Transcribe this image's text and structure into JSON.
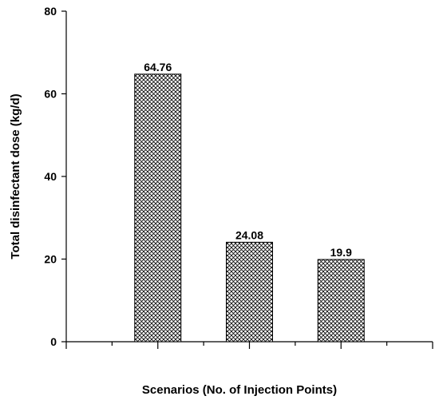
{
  "chart_data": {
    "type": "bar",
    "title": "",
    "xlabel": "Scenarios (No. of Injection Points)",
    "ylabel": "Total disinfectant dose (kg/d)",
    "ylim": [
      0,
      80
    ],
    "yticks": [
      0,
      20,
      40,
      60,
      80
    ],
    "categories": [
      "",
      "",
      ""
    ],
    "values": [
      64.76,
      24.08,
      19.9
    ],
    "value_labels": [
      "64.76",
      "24.08",
      "19.9"
    ],
    "bar_fill": "crosshatch",
    "bar_color": "#000000",
    "background": "#ffffff",
    "grid": false,
    "legend": "none"
  }
}
